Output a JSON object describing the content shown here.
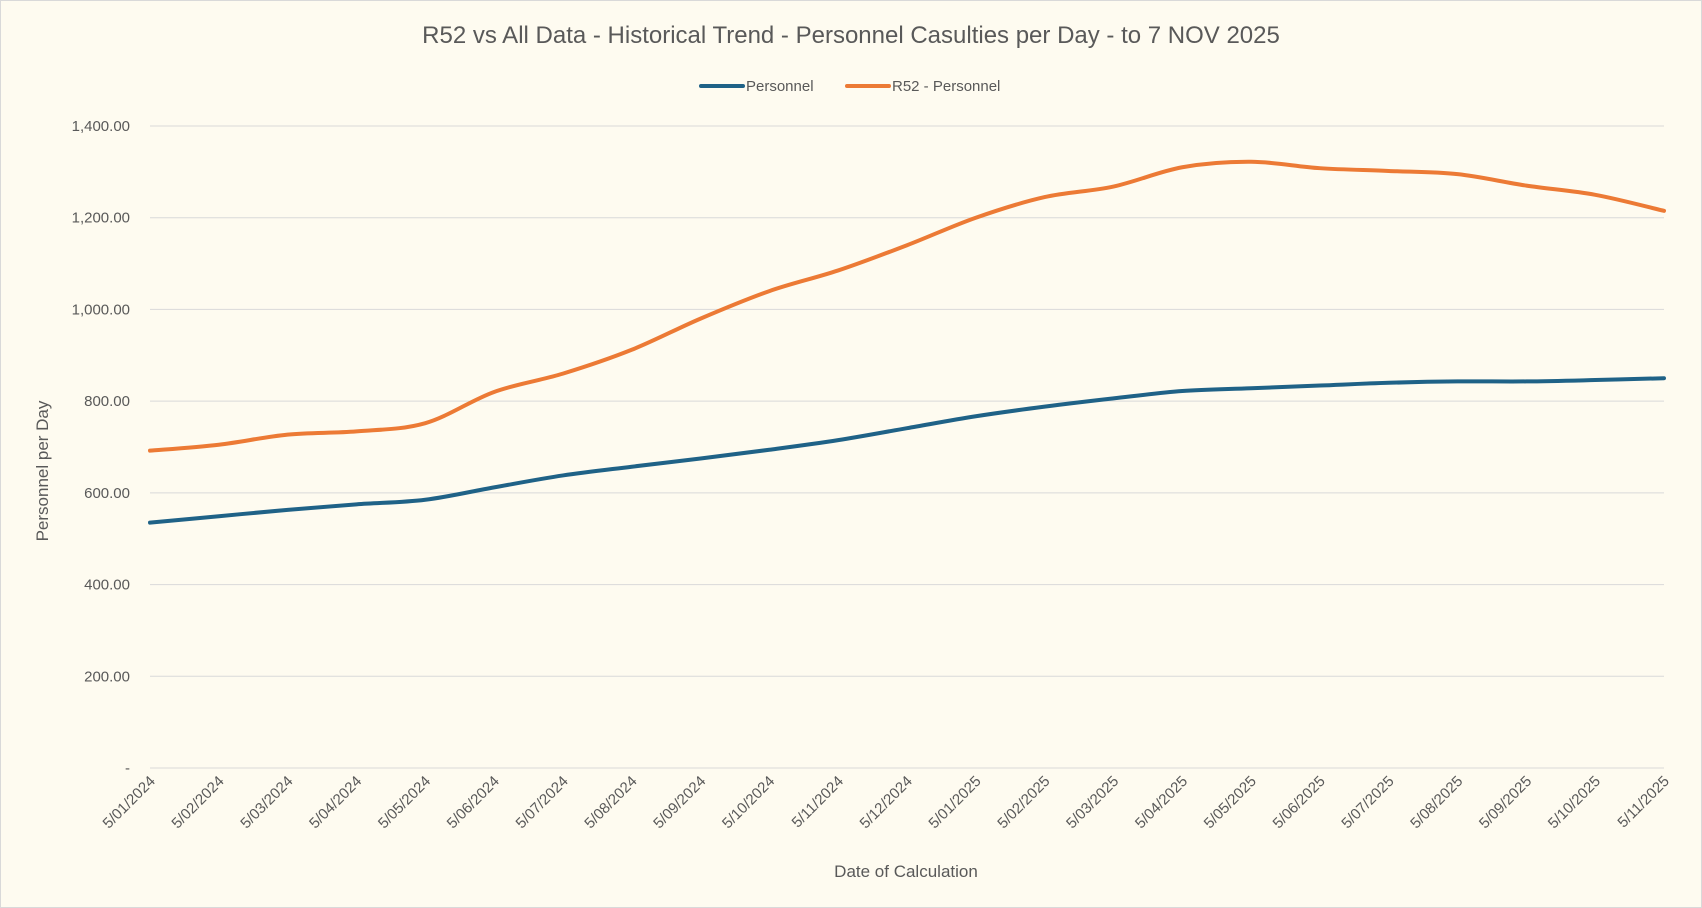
{
  "chart_data": {
    "type": "line",
    "title": "R52 vs All Data - Historical Trend - Personnel Casulties per Day - to 7 NOV 2025",
    "xlabel": "Date of Calculation",
    "ylabel": "Personnel per Day",
    "ylim": [
      0,
      1400
    ],
    "yticks": [
      {
        "value": 0,
        "label": "-"
      },
      {
        "value": 200,
        "label": "200.00"
      },
      {
        "value": 400,
        "label": "400.00"
      },
      {
        "value": 600,
        "label": "600.00"
      },
      {
        "value": 800,
        "label": "800.00"
      },
      {
        "value": 1000,
        "label": "1,000.00"
      },
      {
        "value": 1200,
        "label": "1,200.00"
      },
      {
        "value": 1400,
        "label": "1,400.00"
      }
    ],
    "xticks": [
      "5/01/2024",
      "5/02/2024",
      "5/03/2024",
      "5/04/2024",
      "5/05/2024",
      "5/06/2024",
      "5/07/2024",
      "5/08/2024",
      "5/09/2024",
      "5/10/2024",
      "5/11/2024",
      "5/12/2024",
      "5/01/2025",
      "5/02/2025",
      "5/03/2025",
      "5/04/2025",
      "5/05/2025",
      "5/06/2025",
      "5/07/2025",
      "5/08/2025",
      "5/09/2025",
      "5/10/2025",
      "5/11/2025"
    ],
    "grid": true,
    "legend_position": "top",
    "series": [
      {
        "name": "Personnel",
        "color": "#1f6287",
        "values": [
          535,
          549,
          563,
          575,
          585,
          612,
          638,
          657,
          675,
          694,
          715,
          741,
          767,
          788,
          806,
          822,
          828,
          834,
          840,
          843,
          843,
          846,
          850
        ]
      },
      {
        "name": "R52 - Personnel",
        "color": "#ec7a35",
        "values": [
          692,
          705,
          727,
          734,
          752,
          820,
          860,
          912,
          980,
          1040,
          1085,
          1140,
          1200,
          1245,
          1268,
          1310,
          1322,
          1308,
          1302,
          1295,
          1270,
          1250,
          1215
        ]
      }
    ]
  }
}
